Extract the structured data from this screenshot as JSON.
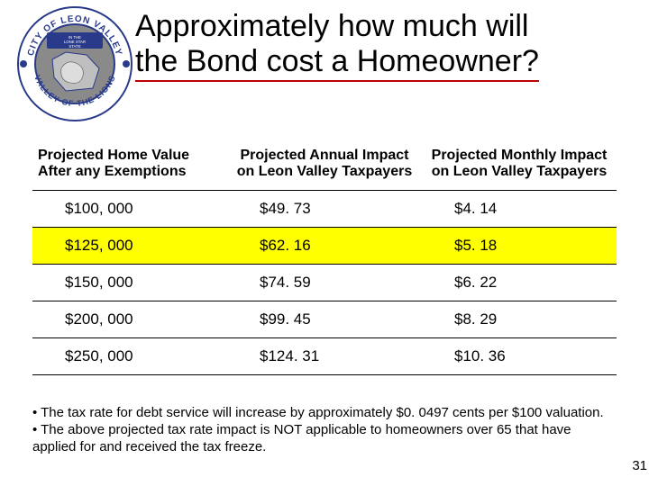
{
  "logo": {
    "outer_text_top": "CITY OF LEON VALLEY",
    "outer_text_bottom": "VALLEY OF THE LIONS",
    "dot_color": "#2a3a8a",
    "ring_bg": "#ffffff",
    "ring_text_color": "#2a3a8a",
    "inner_bg": "#2a3a8a",
    "inner_bg_2": "#8a8a8a",
    "banner_text": "IN THE LONE STAR STATE"
  },
  "title_line1": "Approximately how much will",
  "title_line2": "the Bond cost a Homeowner?",
  "title_underline_color": "#c00000",
  "table": {
    "columns": [
      "Projected Home Value After any Exemptions",
      "Projected  Annual Impact on Leon Valley Taxpayers",
      "Projected Monthly Impact on Leon Valley Taxpayers"
    ],
    "rows": [
      {
        "home_value": "$100, 000",
        "annual": "$49. 73",
        "monthly": "$4. 14",
        "highlight": false
      },
      {
        "home_value": "$125, 000",
        "annual": "$62. 16",
        "monthly": "$5. 18",
        "highlight": true
      },
      {
        "home_value": "$150, 000",
        "annual": "$74. 59",
        "monthly": "$6. 22",
        "highlight": false
      },
      {
        "home_value": "$200, 000",
        "annual": "$99. 45",
        "monthly": "$8. 29",
        "highlight": false
      },
      {
        "home_value": "$250, 000",
        "annual": "$124. 31",
        "monthly": "$10. 36",
        "highlight": false
      }
    ],
    "highlight_color": "#ffff00",
    "border_color": "#000000",
    "header_fontsize": 16,
    "cell_fontsize": 17
  },
  "notes": [
    "• The tax rate for debt service will increase by approximately $0. 0497 cents per $100 valuation.",
    "• The above projected tax rate impact is NOT applicable to homeowners over 65 that have applied for and received the tax freeze."
  ],
  "page_number": "31",
  "background_color": "#ffffff"
}
